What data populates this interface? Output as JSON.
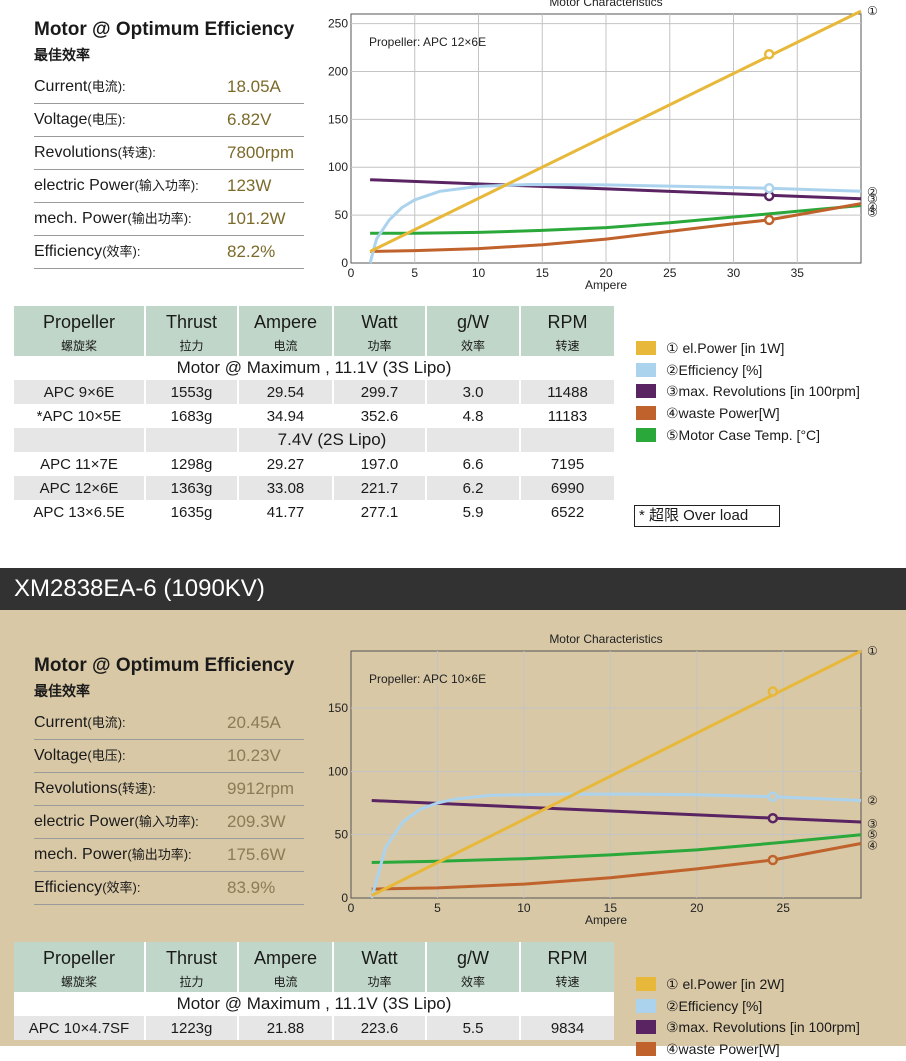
{
  "colors": {
    "power": "#e8b83a",
    "efficiency": "#acd3ee",
    "revolutions": "#5a2362",
    "waste": "#c0622b",
    "temp": "#2aa83a",
    "header_bg": "#bfd6c8",
    "dark_bar": "#323232",
    "tan_bg": "#d8c8a6"
  },
  "motor1": {
    "eff_title": "Motor @ Optimum Efficiency",
    "eff_subtitle": "最佳效率",
    "eff_rows": [
      {
        "label": "Current",
        "cn": "(电流):",
        "value": "18.05A"
      },
      {
        "label": "Voltage",
        "cn": "(电压):",
        "value": "6.82V"
      },
      {
        "label": "Revolutions",
        "cn": "(转速):",
        "value": "7800rpm"
      },
      {
        "label": "electric Power",
        "cn": "(输入功率):",
        "value": "123W"
      },
      {
        "label": "mech. Power",
        "cn": "(输出功率):",
        "value": "101.2W"
      },
      {
        "label": "Efficiency",
        "cn": "(效率):",
        "value": "82.2%"
      }
    ],
    "table": {
      "headers": [
        {
          "main": "Propeller",
          "sub": "螺旋桨"
        },
        {
          "main": "Thrust",
          "sub": "拉力"
        },
        {
          "main": "Ampere",
          "sub": "电流"
        },
        {
          "main": "Watt",
          "sub": "功率"
        },
        {
          "main": "g/W",
          "sub": "效率"
        },
        {
          "main": "RPM",
          "sub": "转速"
        }
      ],
      "group1": "Motor @ Maximum , 11.1V (3S Lipo)",
      "rows1": [
        [
          "APC 9×6E",
          "1553g",
          "29.54",
          "299.7",
          "3.0",
          "11488"
        ],
        [
          "*APC 10×5E",
          "1683g",
          "34.94",
          "352.6",
          "4.8",
          "11183"
        ]
      ],
      "group2": "7.4V (2S Lipo)",
      "rows2": [
        [
          "APC 11×7E",
          "1298g",
          "29.27",
          "197.0",
          "6.6",
          "7195"
        ],
        [
          "APC 12×6E",
          "1363g",
          "33.08",
          "221.7",
          "6.2",
          "6990"
        ],
        [
          "APC 13×6.5E",
          "1635g",
          "41.77",
          "277.1",
          "5.9",
          "6522"
        ]
      ]
    },
    "legend": [
      "① el.Power [in 1W]",
      "②Efficiency [%]",
      "③max. Revolutions [in 100rpm]",
      "④waste Power[W]",
      "⑤Motor Case Temp. [°C]"
    ],
    "note": "* 超限 Over load"
  },
  "motor2": {
    "title": "XM2838EA-6 (1090KV)",
    "eff_title": "Motor @ Optimum Efficiency",
    "eff_subtitle": "最佳效率",
    "eff_rows": [
      {
        "label": "Current",
        "cn": "(电流):",
        "value": "20.45A"
      },
      {
        "label": "Voltage",
        "cn": "(电压):",
        "value": "10.23V"
      },
      {
        "label": "Revolutions",
        "cn": "(转速):",
        "value": "9912rpm"
      },
      {
        "label": "electric Power",
        "cn": "(输入功率):",
        "value": "209.3W"
      },
      {
        "label": "mech. Power",
        "cn": "(输出功率):",
        "value": "175.6W"
      },
      {
        "label": "Efficiency",
        "cn": "(效率):",
        "value": "83.9%"
      }
    ],
    "table": {
      "headers": [
        {
          "main": "Propeller",
          "sub": "螺旋桨"
        },
        {
          "main": "Thrust",
          "sub": "拉力"
        },
        {
          "main": "Ampere",
          "sub": "电流"
        },
        {
          "main": "Watt",
          "sub": "功率"
        },
        {
          "main": "g/W",
          "sub": "效率"
        },
        {
          "main": "RPM",
          "sub": "转速"
        }
      ],
      "group1": "Motor @ Maximum , 11.1V (3S Lipo)",
      "rows1": [
        [
          "APC 10×4.7SF",
          "1223g",
          "21.88",
          "223.6",
          "5.5",
          "9834"
        ]
      ]
    },
    "legend": [
      "① el.Power [in 2W]",
      "②Efficiency [%]",
      "③max. Revolutions [in 100rpm]",
      "④waste Power[W]"
    ]
  },
  "chart_data": [
    {
      "type": "line",
      "title": "Motor Characteristics",
      "annotation": "Propeller:  APC 12×6E",
      "xlabel": "Ampere",
      "ylabel": "",
      "xlim": [
        0,
        40
      ],
      "ylim": [
        0,
        260
      ],
      "xticks": [
        0,
        5,
        10,
        15,
        20,
        25,
        30,
        35
      ],
      "yticks": [
        0,
        50,
        100,
        150,
        200,
        250
      ],
      "marker_x": 32.8,
      "series": [
        {
          "name": "①",
          "key": "power",
          "x": [
            1.5,
            40
          ],
          "y": [
            12,
            263
          ],
          "marker_y": 218
        },
        {
          "name": "②",
          "key": "efficiency",
          "x": [
            1.5,
            2,
            3,
            4,
            5,
            7,
            10,
            14,
            20,
            26,
            32.8,
            40
          ],
          "y": [
            0,
            25,
            45,
            58,
            66,
            75,
            80,
            82,
            81.5,
            80,
            78,
            75
          ],
          "marker_y": 78
        },
        {
          "name": "③",
          "key": "revolutions",
          "x": [
            1.5,
            40
          ],
          "y": [
            87,
            67
          ],
          "marker_y": 70
        },
        {
          "name": "④",
          "key": "waste",
          "x": [
            1.5,
            5,
            10,
            15,
            20,
            25,
            30,
            32.8,
            40
          ],
          "y": [
            12,
            13,
            15,
            19,
            25,
            33,
            41,
            45,
            62
          ],
          "marker_y": 45
        },
        {
          "name": "⑤",
          "key": "temp",
          "x": [
            1.5,
            5,
            10,
            15,
            20,
            25,
            30,
            35,
            40
          ],
          "y": [
            31,
            31,
            32,
            34,
            37,
            42,
            48,
            54,
            60
          ]
        }
      ]
    },
    {
      "type": "line",
      "title": "Motor Characteristics",
      "annotation": "Propeller:  APC 10×6E",
      "xlabel": "Ampere",
      "ylabel": "",
      "xlim": [
        0,
        29.5
      ],
      "ylim": [
        0,
        195
      ],
      "xticks": [
        0,
        5,
        10,
        15,
        20,
        25
      ],
      "yticks": [
        0,
        50,
        100,
        150
      ],
      "marker_x": 24.4,
      "series": [
        {
          "name": "①",
          "key": "power",
          "x": [
            1.2,
            29.5
          ],
          "y": [
            2,
            195
          ],
          "marker_y": 163
        },
        {
          "name": "②",
          "key": "efficiency",
          "x": [
            1.2,
            2,
            3,
            4,
            5,
            6,
            8,
            12,
            16,
            20,
            24.4,
            29.5
          ],
          "y": [
            0,
            40,
            60,
            70,
            75,
            78,
            81,
            82,
            82,
            81.5,
            80,
            77
          ],
          "marker_y": 80
        },
        {
          "name": "③",
          "key": "revolutions",
          "x": [
            1.2,
            29.5
          ],
          "y": [
            77,
            60
          ],
          "marker_y": 63
        },
        {
          "name": "④",
          "key": "waste",
          "x": [
            1.2,
            5,
            10,
            15,
            20,
            24.4,
            29.5
          ],
          "y": [
            7,
            8,
            11,
            16,
            23,
            30,
            43
          ],
          "marker_y": 30
        },
        {
          "name": "⑤",
          "key": "temp",
          "x": [
            1.2,
            5,
            10,
            15,
            20,
            25,
            29.5
          ],
          "y": [
            28,
            29,
            31,
            34,
            38,
            44,
            50
          ]
        }
      ]
    }
  ]
}
